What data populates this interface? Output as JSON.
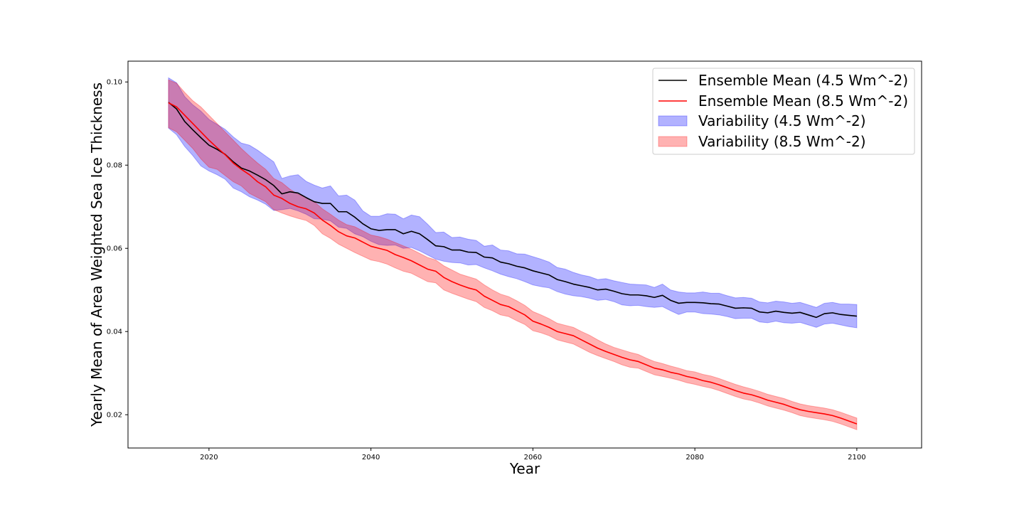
{
  "chart_data": {
    "type": "line",
    "title": "",
    "xlabel": "Year",
    "ylabel": "Yearly Mean of Area Weighted Sea Ice Thickness",
    "xlim": [
      2010,
      2108
    ],
    "ylim": [
      0.012,
      0.105
    ],
    "xticks": [
      2020,
      2040,
      2060,
      2080,
      2100
    ],
    "xtick_labels": [
      "2020",
      "2040",
      "2060",
      "2080",
      "2100"
    ],
    "yticks": [
      0.02,
      0.04,
      0.06,
      0.08,
      0.1
    ],
    "ytick_labels": [
      "0.02",
      "0.04",
      "0.06",
      "0.08",
      "0.10"
    ],
    "grid": false,
    "legend_position": "top-right",
    "x": [
      2015,
      2016,
      2017,
      2018,
      2019,
      2020,
      2021,
      2022,
      2023,
      2024,
      2025,
      2026,
      2027,
      2028,
      2029,
      2030,
      2031,
      2032,
      2033,
      2034,
      2035,
      2036,
      2037,
      2038,
      2039,
      2040,
      2041,
      2042,
      2043,
      2044,
      2045,
      2046,
      2047,
      2048,
      2049,
      2050,
      2051,
      2052,
      2053,
      2054,
      2055,
      2056,
      2057,
      2058,
      2059,
      2060,
      2061,
      2062,
      2063,
      2064,
      2065,
      2066,
      2067,
      2068,
      2069,
      2070,
      2071,
      2072,
      2073,
      2074,
      2075,
      2076,
      2077,
      2078,
      2079,
      2080,
      2081,
      2082,
      2083,
      2084,
      2085,
      2086,
      2087,
      2088,
      2089,
      2090,
      2091,
      2092,
      2093,
      2094,
      2095,
      2096,
      2097,
      2098,
      2099,
      2100
    ],
    "series": [
      {
        "name": "Ensemble Mean (4.5 Wm^-2)",
        "kind": "line",
        "color": "#000000",
        "values": [
          0.0951,
          0.0935,
          0.0905,
          0.0885,
          0.0866,
          0.0848,
          0.0838,
          0.0826,
          0.0808,
          0.0793,
          0.0786,
          0.0776,
          0.0765,
          0.0751,
          0.0731,
          0.0736,
          0.0733,
          0.0722,
          0.0712,
          0.0708,
          0.0708,
          0.0688,
          0.0688,
          0.0675,
          0.0659,
          0.0647,
          0.0643,
          0.0645,
          0.0645,
          0.0635,
          0.0641,
          0.0635,
          0.0621,
          0.0606,
          0.0604,
          0.0596,
          0.0596,
          0.0591,
          0.059,
          0.0579,
          0.0577,
          0.0567,
          0.0563,
          0.0557,
          0.0553,
          0.0546,
          0.0541,
          0.0536,
          0.0525,
          0.052,
          0.0514,
          0.051,
          0.0506,
          0.05,
          0.0502,
          0.0497,
          0.0491,
          0.0488,
          0.0488,
          0.0486,
          0.0482,
          0.0487,
          0.0475,
          0.0468,
          0.047,
          0.047,
          0.0469,
          0.0467,
          0.0466,
          0.0461,
          0.0456,
          0.0457,
          0.0456,
          0.0447,
          0.0445,
          0.0449,
          0.0446,
          0.0444,
          0.0446,
          0.044,
          0.0434,
          0.0443,
          0.0445,
          0.0441,
          0.0439,
          0.0437
        ]
      },
      {
        "name": "Ensemble Mean (8.5 Wm^-2)",
        "kind": "line",
        "color": "#ff0000",
        "values": [
          0.095,
          0.094,
          0.092,
          0.09,
          0.088,
          0.086,
          0.0842,
          0.0825,
          0.0805,
          0.079,
          0.0777,
          0.076,
          0.0748,
          0.0728,
          0.072,
          0.0708,
          0.07,
          0.0695,
          0.0685,
          0.0668,
          0.0655,
          0.064,
          0.063,
          0.0625,
          0.0615,
          0.0605,
          0.06,
          0.0595,
          0.0585,
          0.0578,
          0.057,
          0.056,
          0.055,
          0.0545,
          0.053,
          0.052,
          0.0512,
          0.0505,
          0.05,
          0.0485,
          0.0475,
          0.0465,
          0.046,
          0.045,
          0.044,
          0.0425,
          0.0418,
          0.041,
          0.04,
          0.0395,
          0.039,
          0.038,
          0.037,
          0.036,
          0.0352,
          0.0345,
          0.0338,
          0.0332,
          0.0328,
          0.032,
          0.0312,
          0.0308,
          0.0302,
          0.0298,
          0.0292,
          0.0288,
          0.0282,
          0.0278,
          0.0272,
          0.0265,
          0.0258,
          0.0252,
          0.0248,
          0.0242,
          0.0235,
          0.023,
          0.0225,
          0.0218,
          0.0212,
          0.0208,
          0.0205,
          0.0202,
          0.0198,
          0.0192,
          0.0185,
          0.0178
        ]
      },
      {
        "name": "Variability (4.5 Wm^-2)",
        "kind": "band",
        "color": "#0000ff",
        "alpha": 0.3,
        "lower": [
          0.0889,
          0.0873,
          0.0845,
          0.0823,
          0.0798,
          0.0786,
          0.0777,
          0.0766,
          0.0745,
          0.0736,
          0.0724,
          0.0716,
          0.0706,
          0.0691,
          0.0693,
          0.0696,
          0.069,
          0.0682,
          0.0671,
          0.067,
          0.0666,
          0.0651,
          0.0648,
          0.0635,
          0.0628,
          0.0617,
          0.0609,
          0.0607,
          0.0608,
          0.06,
          0.0602,
          0.0594,
          0.0584,
          0.0574,
          0.0569,
          0.0566,
          0.0565,
          0.056,
          0.0561,
          0.0553,
          0.0546,
          0.0538,
          0.0532,
          0.0527,
          0.052,
          0.0512,
          0.0508,
          0.0505,
          0.0496,
          0.049,
          0.0486,
          0.0484,
          0.048,
          0.0475,
          0.0477,
          0.0472,
          0.0464,
          0.0462,
          0.0463,
          0.046,
          0.0458,
          0.046,
          0.045,
          0.0441,
          0.0447,
          0.0447,
          0.0443,
          0.0442,
          0.044,
          0.0436,
          0.0431,
          0.0432,
          0.0432,
          0.0423,
          0.0421,
          0.0425,
          0.0421,
          0.042,
          0.0422,
          0.0416,
          0.041,
          0.0418,
          0.042,
          0.0416,
          0.0412,
          0.0409
        ],
        "upper": [
          0.101,
          0.0998,
          0.0965,
          0.0945,
          0.093,
          0.091,
          0.0898,
          0.0886,
          0.0868,
          0.0853,
          0.0848,
          0.0836,
          0.0822,
          0.0808,
          0.0768,
          0.0774,
          0.0777,
          0.0761,
          0.0752,
          0.0745,
          0.075,
          0.0726,
          0.0728,
          0.0716,
          0.069,
          0.0677,
          0.0677,
          0.0683,
          0.0682,
          0.0671,
          0.068,
          0.0676,
          0.0658,
          0.0638,
          0.0639,
          0.0626,
          0.0627,
          0.0622,
          0.0619,
          0.0605,
          0.0608,
          0.0596,
          0.0594,
          0.0587,
          0.0586,
          0.058,
          0.0574,
          0.0567,
          0.0554,
          0.055,
          0.0542,
          0.0536,
          0.0532,
          0.0525,
          0.0527,
          0.0522,
          0.0518,
          0.0514,
          0.0513,
          0.0512,
          0.0506,
          0.0514,
          0.05,
          0.0495,
          0.0493,
          0.0493,
          0.0495,
          0.0492,
          0.0492,
          0.0486,
          0.0481,
          0.0482,
          0.048,
          0.0471,
          0.0469,
          0.0473,
          0.0471,
          0.0468,
          0.047,
          0.0464,
          0.0458,
          0.0468,
          0.047,
          0.0466,
          0.0466,
          0.0465
        ]
      },
      {
        "name": "Variability (8.5 Wm^-2)",
        "kind": "band",
        "color": "#ff0000",
        "alpha": 0.3,
        "lower": [
          0.089,
          0.088,
          0.086,
          0.084,
          0.0815,
          0.0795,
          0.079,
          0.0775,
          0.076,
          0.075,
          0.0732,
          0.0722,
          0.0712,
          0.0693,
          0.0685,
          0.0678,
          0.0672,
          0.0667,
          0.0655,
          0.0635,
          0.0624,
          0.061,
          0.06,
          0.059,
          0.0581,
          0.0572,
          0.0568,
          0.0562,
          0.0553,
          0.0545,
          0.054,
          0.053,
          0.052,
          0.0517,
          0.05,
          0.0492,
          0.0485,
          0.0478,
          0.0472,
          0.0458,
          0.045,
          0.044,
          0.0436,
          0.0426,
          0.0417,
          0.0402,
          0.0397,
          0.039,
          0.038,
          0.0375,
          0.037,
          0.036,
          0.035,
          0.0342,
          0.0335,
          0.0328,
          0.032,
          0.0314,
          0.0312,
          0.0304,
          0.0296,
          0.0292,
          0.0288,
          0.0283,
          0.0277,
          0.0273,
          0.0268,
          0.0264,
          0.0258,
          0.0251,
          0.0244,
          0.0238,
          0.0234,
          0.0228,
          0.0221,
          0.0216,
          0.0211,
          0.0205,
          0.0198,
          0.0194,
          0.0191,
          0.0188,
          0.0184,
          0.0178,
          0.0171,
          0.0164
        ],
        "upper": [
          0.1005,
          0.0997,
          0.0975,
          0.0955,
          0.094,
          0.092,
          0.09,
          0.088,
          0.086,
          0.084,
          0.0822,
          0.0805,
          0.079,
          0.0768,
          0.0758,
          0.0742,
          0.073,
          0.0722,
          0.0712,
          0.0695,
          0.0682,
          0.0668,
          0.0657,
          0.0652,
          0.0642,
          0.0632,
          0.0628,
          0.0622,
          0.0614,
          0.0606,
          0.0598,
          0.0588,
          0.0578,
          0.0572,
          0.0558,
          0.0548,
          0.0538,
          0.0532,
          0.0526,
          0.0512,
          0.05,
          0.049,
          0.0484,
          0.0474,
          0.0463,
          0.0448,
          0.044,
          0.0431,
          0.042,
          0.0415,
          0.041,
          0.04,
          0.0391,
          0.038,
          0.037,
          0.0362,
          0.0356,
          0.035,
          0.0345,
          0.0336,
          0.0328,
          0.0323,
          0.0317,
          0.0312,
          0.0306,
          0.0303,
          0.0297,
          0.0293,
          0.0287,
          0.028,
          0.0273,
          0.0267,
          0.0262,
          0.0256,
          0.0249,
          0.0244,
          0.0239,
          0.0232,
          0.0226,
          0.0222,
          0.0219,
          0.0216,
          0.0212,
          0.0206,
          0.0199,
          0.0192
        ]
      }
    ]
  }
}
